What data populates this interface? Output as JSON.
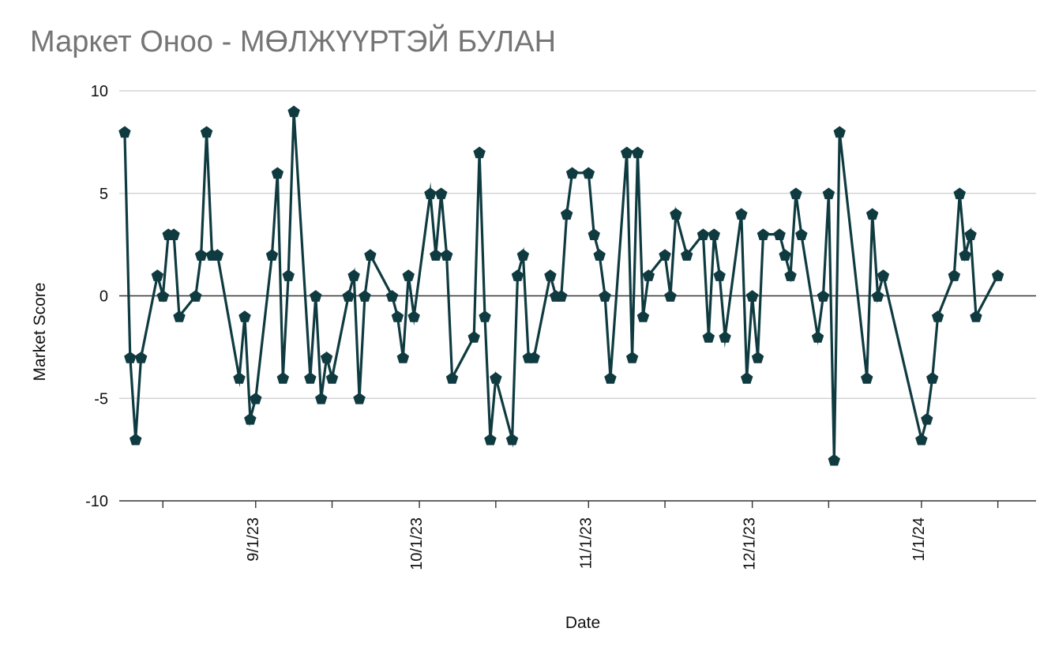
{
  "chart_data": {
    "type": "line",
    "title": "Маркет Оноо - МӨЛЖҮҮРТЭЙ БУЛАН",
    "xlabel": "Date",
    "ylabel": "Market Score",
    "ylim": [
      -10,
      10
    ],
    "yticks": [
      10,
      5,
      0,
      -5,
      -10
    ],
    "ytick_labels": [
      "10",
      "5",
      "0",
      "-5",
      "-10"
    ],
    "xlim": [
      "2023-08-07",
      "2024-01-22"
    ],
    "xtick_labels": [
      {
        "date": "2023-09-01",
        "label": "9/1/23"
      },
      {
        "date": "2023-10-01",
        "label": "10/1/23"
      },
      {
        "date": "2023-11-01",
        "label": "11/1/23"
      },
      {
        "date": "2023-12-01",
        "label": "12/1/23"
      },
      {
        "date": "2024-01-01",
        "label": "1/1/24"
      }
    ],
    "grid": true,
    "legend": "none",
    "colors": {
      "series": "#0f3b40",
      "grid": "#cccccc",
      "axis": "#333333",
      "title": "#757575"
    },
    "marker": "pentagon",
    "series": [
      {
        "name": "",
        "points": [
          {
            "x": "2023-08-08",
            "y": 8
          },
          {
            "x": "2023-08-09",
            "y": -3
          },
          {
            "x": "2023-08-10",
            "y": -7
          },
          {
            "x": "2023-08-11",
            "y": -3
          },
          {
            "x": "2023-08-14",
            "y": 1
          },
          {
            "x": "2023-08-15",
            "y": 0
          },
          {
            "x": "2023-08-16",
            "y": 3
          },
          {
            "x": "2023-08-17",
            "y": 3
          },
          {
            "x": "2023-08-18",
            "y": -1
          },
          {
            "x": "2023-08-21",
            "y": 0
          },
          {
            "x": "2023-08-22",
            "y": 2
          },
          {
            "x": "2023-08-23",
            "y": 8
          },
          {
            "x": "2023-08-24",
            "y": 2
          },
          {
            "x": "2023-08-25",
            "y": 2
          },
          {
            "x": "2023-08-29",
            "y": -4
          },
          {
            "x": "2023-08-30",
            "y": -1
          },
          {
            "x": "2023-08-31",
            "y": -6
          },
          {
            "x": "2023-09-01",
            "y": -5
          },
          {
            "x": "2023-09-04",
            "y": 2
          },
          {
            "x": "2023-09-05",
            "y": 6
          },
          {
            "x": "2023-09-06",
            "y": -4
          },
          {
            "x": "2023-09-07",
            "y": 1
          },
          {
            "x": "2023-09-08",
            "y": 9
          },
          {
            "x": "2023-09-11",
            "y": -4
          },
          {
            "x": "2023-09-12",
            "y": 0
          },
          {
            "x": "2023-09-13",
            "y": -5
          },
          {
            "x": "2023-09-14",
            "y": -3
          },
          {
            "x": "2023-09-15",
            "y": -4
          },
          {
            "x": "2023-09-18",
            "y": 0
          },
          {
            "x": "2023-09-19",
            "y": 1
          },
          {
            "x": "2023-09-20",
            "y": -5
          },
          {
            "x": "2023-09-21",
            "y": 0
          },
          {
            "x": "2023-09-22",
            "y": 2
          },
          {
            "x": "2023-09-26",
            "y": 0
          },
          {
            "x": "2023-09-27",
            "y": -1
          },
          {
            "x": "2023-09-28",
            "y": -3
          },
          {
            "x": "2023-09-29",
            "y": 1
          },
          {
            "x": "2023-09-30",
            "y": -1
          },
          {
            "x": "2023-10-03",
            "y": 5
          },
          {
            "x": "2023-10-04",
            "y": 2
          },
          {
            "x": "2023-10-05",
            "y": 5
          },
          {
            "x": "2023-10-06",
            "y": 2
          },
          {
            "x": "2023-10-07",
            "y": -4
          },
          {
            "x": "2023-10-11",
            "y": -2
          },
          {
            "x": "2023-10-12",
            "y": 7
          },
          {
            "x": "2023-10-13",
            "y": -1
          },
          {
            "x": "2023-10-14",
            "y": -7
          },
          {
            "x": "2023-10-15",
            "y": -4
          },
          {
            "x": "2023-10-18",
            "y": -7
          },
          {
            "x": "2023-10-19",
            "y": 1
          },
          {
            "x": "2023-10-20",
            "y": 2
          },
          {
            "x": "2023-10-21",
            "y": -3
          },
          {
            "x": "2023-10-22",
            "y": -3
          },
          {
            "x": "2023-10-25",
            "y": 1
          },
          {
            "x": "2023-10-26",
            "y": 0
          },
          {
            "x": "2023-10-27",
            "y": 0
          },
          {
            "x": "2023-10-28",
            "y": 4
          },
          {
            "x": "2023-10-29",
            "y": 6
          },
          {
            "x": "2023-11-01",
            "y": 6
          },
          {
            "x": "2023-11-02",
            "y": 3
          },
          {
            "x": "2023-11-03",
            "y": 2
          },
          {
            "x": "2023-11-04",
            "y": 0
          },
          {
            "x": "2023-11-05",
            "y": -4
          },
          {
            "x": "2023-11-08",
            "y": 7
          },
          {
            "x": "2023-11-09",
            "y": -3
          },
          {
            "x": "2023-11-10",
            "y": 7
          },
          {
            "x": "2023-11-11",
            "y": -1
          },
          {
            "x": "2023-11-12",
            "y": 1
          },
          {
            "x": "2023-11-15",
            "y": 2
          },
          {
            "x": "2023-11-16",
            "y": 0
          },
          {
            "x": "2023-11-17",
            "y": 4
          },
          {
            "x": "2023-11-19",
            "y": 2
          },
          {
            "x": "2023-11-22",
            "y": 3
          },
          {
            "x": "2023-11-23",
            "y": -2
          },
          {
            "x": "2023-11-24",
            "y": 3
          },
          {
            "x": "2023-11-25",
            "y": 1
          },
          {
            "x": "2023-11-26",
            "y": -2
          },
          {
            "x": "2023-11-29",
            "y": 4
          },
          {
            "x": "2023-11-30",
            "y": -4
          },
          {
            "x": "2023-12-01",
            "y": 0
          },
          {
            "x": "2023-12-02",
            "y": -3
          },
          {
            "x": "2023-12-03",
            "y": 3
          },
          {
            "x": "2023-12-06",
            "y": 3
          },
          {
            "x": "2023-12-07",
            "y": 2
          },
          {
            "x": "2023-12-08",
            "y": 1
          },
          {
            "x": "2023-12-09",
            "y": 5
          },
          {
            "x": "2023-12-10",
            "y": 3
          },
          {
            "x": "2023-12-13",
            "y": -2
          },
          {
            "x": "2023-12-14",
            "y": 0
          },
          {
            "x": "2023-12-15",
            "y": 5
          },
          {
            "x": "2023-12-16",
            "y": -8
          },
          {
            "x": "2023-12-17",
            "y": 8
          },
          {
            "x": "2023-12-22",
            "y": -4
          },
          {
            "x": "2023-12-23",
            "y": 4
          },
          {
            "x": "2023-12-24",
            "y": 0
          },
          {
            "x": "2023-12-25",
            "y": 1
          },
          {
            "x": "2024-01-01",
            "y": -7
          },
          {
            "x": "2024-01-02",
            "y": -6
          },
          {
            "x": "2024-01-03",
            "y": -4
          },
          {
            "x": "2024-01-04",
            "y": -1
          },
          {
            "x": "2024-01-07",
            "y": 1
          },
          {
            "x": "2024-01-08",
            "y": 5
          },
          {
            "x": "2024-01-09",
            "y": 2
          },
          {
            "x": "2024-01-10",
            "y": 3
          },
          {
            "x": "2024-01-11",
            "y": -1
          },
          {
            "x": "2024-01-15",
            "y": 1
          }
        ]
      }
    ]
  }
}
